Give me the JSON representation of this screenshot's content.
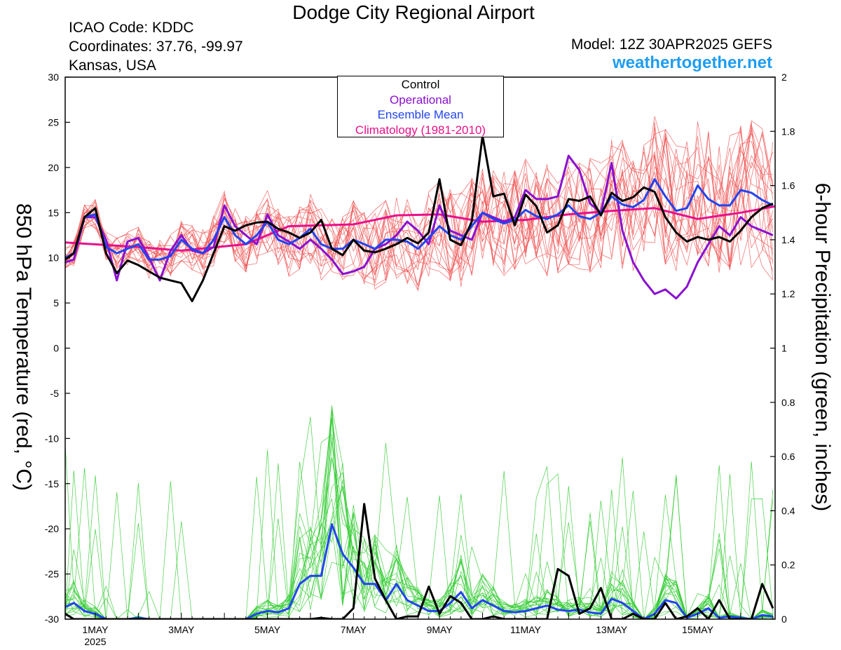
{
  "header": {
    "title": "Dodge City Regional Airport",
    "icao": "ICAO Code: KDDC",
    "coordinates": "Coordinates: 37.76, -99.97",
    "location": "Kansas, USA",
    "model": "Model: 12Z 30APR2025 GEFS",
    "website": "weathertogether.net"
  },
  "legend": {
    "control": "Control",
    "operational": "Operational",
    "ensemble_mean": "Ensemble Mean",
    "climatology": "Climatology (1981-2010)"
  },
  "colors": {
    "control": "#000000",
    "operational": "#8a10d0",
    "ensemble_mean": "#2244ee",
    "climatology": "#e8108a",
    "members_temp": "#f05050",
    "members_precip": "#33cc33",
    "website": "#1f9df0"
  },
  "chart_data": {
    "type": "line",
    "title": "Dodge City Regional Airport",
    "xlabel": "",
    "ylabel": "850 hPa Temperature (red, °C)",
    "ylabel_right": "6-hour Precipitation (green, inches)",
    "x_unit": "days since 30 APR 2025 12Z",
    "xlim": [
      0.3,
      16.8
    ],
    "ylim": [
      -30,
      30
    ],
    "ylim_right": [
      0,
      2
    ],
    "yticks": [
      -30,
      -25,
      -20,
      -15,
      -10,
      -5,
      0,
      5,
      10,
      15,
      20,
      25,
      30
    ],
    "yticks_right": [
      0,
      0.2,
      0.4,
      0.6,
      0.8,
      1,
      1.2,
      1.4,
      1.6,
      1.8,
      2
    ],
    "x_tick_labels": [
      {
        "x": 1,
        "label": "1MAY",
        "sub": "2025"
      },
      {
        "x": 3,
        "label": "3MAY"
      },
      {
        "x": 5,
        "label": "5MAY"
      },
      {
        "x": 7,
        "label": "7MAY"
      },
      {
        "x": 9,
        "label": "9MAY"
      },
      {
        "x": 11,
        "label": "11MAY"
      },
      {
        "x": 13,
        "label": "13MAY"
      },
      {
        "x": 15,
        "label": "15MAY"
      }
    ],
    "series": [
      {
        "name": "Climatology (1981-2010)",
        "axis": "left",
        "x": [
          0.3,
          2.0,
          3.0,
          4.5,
          5.5,
          7.0,
          8.0,
          9.0,
          10.0,
          11.0,
          12.0,
          13.0,
          14.0,
          15.0,
          16.0,
          16.8
        ],
        "values": [
          11.7,
          11.2,
          10.8,
          11.5,
          13.5,
          13.7,
          14.7,
          14.8,
          14.0,
          14.2,
          14.8,
          15.2,
          15.5,
          14.3,
          15.0,
          15.7
        ]
      },
      {
        "name": "Control",
        "axis": "left",
        "x": [
          0.3,
          0.5,
          0.75,
          1.0,
          1.25,
          1.5,
          1.75,
          2.0,
          2.25,
          2.5,
          2.75,
          3.0,
          3.25,
          3.5,
          3.75,
          4.0,
          4.25,
          4.5,
          4.75,
          5.0,
          5.25,
          5.5,
          5.75,
          6.0,
          6.25,
          6.5,
          6.75,
          7.0,
          7.25,
          7.5,
          7.75,
          8.0,
          8.25,
          8.5,
          8.75,
          9.0,
          9.25,
          9.5,
          9.75,
          10.0,
          10.25,
          10.5,
          10.75,
          11.0,
          11.25,
          11.5,
          11.75,
          12.0,
          12.25,
          12.5,
          12.75,
          13.0,
          13.25,
          13.5,
          13.75,
          14.0,
          14.25,
          14.5,
          14.75,
          15.0,
          15.25,
          15.5,
          15.75,
          16.0,
          16.25,
          16.5,
          16.75
        ],
        "values": [
          9.8,
          10.5,
          14.5,
          15.5,
          10.5,
          8.3,
          9.7,
          9.2,
          8.5,
          7.8,
          7.5,
          7.2,
          5.2,
          7.5,
          10.5,
          13.5,
          13.0,
          13.6,
          13.9,
          14.0,
          13.2,
          12.8,
          12.2,
          12.8,
          14.2,
          11.0,
          10.3,
          12.0,
          10.8,
          10.6,
          11.0,
          11.5,
          12.2,
          11.6,
          12.8,
          18.7,
          12.0,
          11.4,
          14.0,
          23.5,
          16.8,
          17.1,
          13.6,
          17.0,
          15.7,
          12.8,
          13.6,
          16.5,
          16.3,
          16.8,
          14.7,
          17.2,
          16.3,
          16.7,
          17.8,
          17.3,
          14.5,
          12.8,
          11.8,
          12.3,
          12.0,
          12.3,
          11.8,
          13.0,
          14.5,
          15.5,
          16.0
        ]
      },
      {
        "name": "Operational",
        "axis": "left",
        "x": [
          0.3,
          0.5,
          0.75,
          1.0,
          1.25,
          1.5,
          1.75,
          2.0,
          2.25,
          2.5,
          2.75,
          3.0,
          3.25,
          3.5,
          3.75,
          4.0,
          4.25,
          4.5,
          4.75,
          5.0,
          5.25,
          5.5,
          5.75,
          6.0,
          6.25,
          6.5,
          6.75,
          7.0,
          7.25,
          7.5,
          7.75,
          8.0,
          8.25,
          8.5,
          8.75,
          9.0,
          9.25,
          9.5,
          9.75,
          10.0,
          10.25,
          10.5,
          10.75,
          11.0,
          11.25,
          11.5,
          11.75,
          12.0,
          12.25,
          12.5,
          12.75,
          13.0,
          13.25,
          13.5,
          13.75,
          14.0,
          14.25,
          14.5,
          14.75,
          15.0,
          15.25,
          15.5,
          15.75,
          16.0,
          16.25,
          16.5,
          16.75
        ],
        "values": [
          9.5,
          9.8,
          14.5,
          14.5,
          12.0,
          7.5,
          11.8,
          12.2,
          10.0,
          7.5,
          10.8,
          12.5,
          10.8,
          10.5,
          11.2,
          15.8,
          13.5,
          12.5,
          11.5,
          14.8,
          12.5,
          11.8,
          11.0,
          12.0,
          11.0,
          9.8,
          8.2,
          8.5,
          9.0,
          11.0,
          11.5,
          12.5,
          14.0,
          13.0,
          11.5,
          15.8,
          13.0,
          12.5,
          12.0,
          15.0,
          14.5,
          14.0,
          14.5,
          17.5,
          16.5,
          16.5,
          16.8,
          21.3,
          19.7,
          16.0,
          15.0,
          20.5,
          13.0,
          9.5,
          7.5,
          6.0,
          6.5,
          5.5,
          6.8,
          9.5,
          11.5,
          13.5,
          12.5,
          14.5,
          13.5,
          13.0,
          12.5
        ]
      },
      {
        "name": "Ensemble Mean",
        "axis": "left",
        "x": [
          0.3,
          0.5,
          0.75,
          1.0,
          1.25,
          1.5,
          1.75,
          2.0,
          2.25,
          2.5,
          2.75,
          3.0,
          3.25,
          3.5,
          3.75,
          4.0,
          4.25,
          4.5,
          4.75,
          5.0,
          5.25,
          5.5,
          5.75,
          6.0,
          6.25,
          6.5,
          6.75,
          7.0,
          7.25,
          7.5,
          7.75,
          8.0,
          8.25,
          8.5,
          8.75,
          9.0,
          9.25,
          9.5,
          9.75,
          10.0,
          10.25,
          10.5,
          10.75,
          11.0,
          11.25,
          11.5,
          11.75,
          12.0,
          12.25,
          12.5,
          12.75,
          13.0,
          13.25,
          13.5,
          13.75,
          14.0,
          14.25,
          14.5,
          14.75,
          15.0,
          15.25,
          15.5,
          15.75,
          16.0,
          16.25,
          16.5,
          16.75
        ],
        "values": [
          10.0,
          10.5,
          14.5,
          14.8,
          11.2,
          10.5,
          11.0,
          11.5,
          9.8,
          9.8,
          10.2,
          12.0,
          11.0,
          10.5,
          12.0,
          14.5,
          12.5,
          11.5,
          12.5,
          14.0,
          12.0,
          11.5,
          12.2,
          13.2,
          11.5,
          11.0,
          11.0,
          12.0,
          11.5,
          11.0,
          12.0,
          12.0,
          11.8,
          11.0,
          12.2,
          13.5,
          12.5,
          12.0,
          13.5,
          15.0,
          14.3,
          13.8,
          14.2,
          15.3,
          14.6,
          14.3,
          14.8,
          15.8,
          14.6,
          14.3,
          15.0,
          16.8,
          15.9,
          15.6,
          16.4,
          18.7,
          16.8,
          15.2,
          15.5,
          18.0,
          16.5,
          15.8,
          15.8,
          17.5,
          17.2,
          16.4,
          15.8
        ]
      },
      {
        "name": "Control precip",
        "axis": "right",
        "x": [
          0.3,
          0.5,
          0.75,
          1.0,
          1.25,
          1.5,
          1.75,
          2.0,
          2.25,
          2.5,
          2.75,
          3.0,
          3.25,
          3.5,
          3.75,
          4.0,
          4.25,
          4.5,
          4.75,
          5.0,
          5.25,
          5.5,
          5.75,
          6.0,
          6.25,
          6.5,
          6.75,
          7.0,
          7.25,
          7.5,
          7.75,
          8.0,
          8.25,
          8.5,
          8.75,
          9.0,
          9.25,
          9.5,
          9.75,
          10.0,
          10.25,
          10.5,
          10.75,
          11.0,
          11.25,
          11.5,
          11.75,
          12.0,
          12.25,
          12.5,
          12.75,
          13.0,
          13.25,
          13.5,
          13.75,
          14.0,
          14.25,
          14.5,
          14.75,
          15.0,
          15.25,
          15.5,
          15.75,
          16.0,
          16.25,
          16.5,
          16.75
        ],
        "values": [
          0.02,
          0.0,
          0.0,
          0.0,
          0.0,
          0.0,
          0.0,
          0.0,
          0.0,
          0.0,
          0.0,
          0.0,
          0.0,
          0.0,
          0.0,
          0.0,
          0.0,
          0.0,
          0.0,
          0.0,
          0.0,
          0.0,
          0.0,
          0.0,
          0.005,
          0.0,
          0.0,
          0.04,
          0.425,
          0.15,
          0.07,
          0.0,
          0.01,
          0.01,
          0.12,
          0.02,
          0.085,
          0.06,
          0.0,
          0.0,
          0.01,
          0.0,
          0.0,
          0.0,
          0.0,
          0.0,
          0.185,
          0.16,
          0.02,
          0.04,
          0.115,
          0.0,
          0.0,
          0.02,
          0.0,
          0.0,
          0.06,
          0.0,
          0.01,
          0.04,
          0.0,
          0.07,
          0.0,
          0.0,
          0.0,
          0.13,
          0.04
        ]
      },
      {
        "name": "Ensemble Mean precip",
        "axis": "right",
        "x": [
          0.3,
          0.5,
          0.75,
          1.0,
          1.25,
          1.5,
          1.75,
          2.0,
          2.25,
          2.5,
          2.75,
          3.0,
          3.25,
          3.5,
          3.75,
          4.0,
          4.25,
          4.5,
          4.75,
          5.0,
          5.25,
          5.5,
          5.75,
          6.0,
          6.25,
          6.5,
          6.75,
          7.0,
          7.25,
          7.5,
          7.75,
          8.0,
          8.25,
          8.5,
          8.75,
          9.0,
          9.25,
          9.5,
          9.75,
          10.0,
          10.25,
          10.5,
          10.75,
          11.0,
          11.25,
          11.5,
          11.75,
          12.0,
          12.25,
          12.5,
          12.75,
          13.0,
          13.25,
          13.5,
          13.75,
          14.0,
          14.25,
          14.5,
          14.75,
          15.0,
          15.25,
          15.5,
          15.75,
          16.0,
          16.25,
          16.5,
          16.75
        ],
        "values": [
          0.045,
          0.06,
          0.03,
          0.02,
          0.0,
          0.0,
          0.0,
          0.005,
          0.0,
          0.0,
          0.0,
          0.0,
          0.0,
          0.0,
          0.0,
          0.0,
          0.0,
          0.0,
          0.02,
          0.03,
          0.025,
          0.04,
          0.13,
          0.16,
          0.16,
          0.35,
          0.24,
          0.19,
          0.13,
          0.13,
          0.07,
          0.13,
          0.07,
          0.05,
          0.03,
          0.03,
          0.06,
          0.1,
          0.04,
          0.07,
          0.05,
          0.03,
          0.025,
          0.03,
          0.04,
          0.05,
          0.035,
          0.03,
          0.035,
          0.025,
          0.02,
          0.075,
          0.06,
          0.03,
          0.0,
          0.02,
          0.07,
          0.06,
          0.005,
          0.02,
          0.04,
          0.005,
          0.01,
          0.005,
          0.0,
          0.015,
          0.01
        ]
      }
    ]
  }
}
